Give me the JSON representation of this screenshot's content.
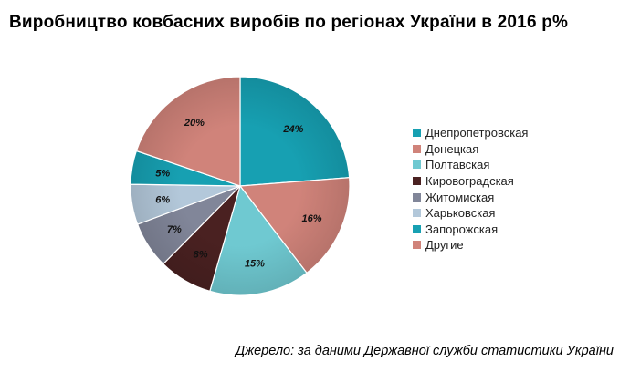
{
  "title": "Виробництво  ковбасних виробів  по регіонах  України в 2016 р%",
  "source": "Джерело: за даними Державної служби статистики України",
  "chart_data": {
    "type": "pie",
    "unit": "%",
    "slices": [
      {
        "label": "Днепропетровская",
        "value": 24,
        "data_label": "24%",
        "color": "#17a0b2"
      },
      {
        "label": "Донецкая",
        "value": 16,
        "data_label": "16%",
        "color": "#d0837a"
      },
      {
        "label": "Полтавская",
        "value": 15,
        "data_label": "15%",
        "color": "#6fc9d1"
      },
      {
        "label": "Кировоградская",
        "value": 8,
        "data_label": "8%",
        "color": "#4a2121"
      },
      {
        "label": "Житомиская",
        "value": 7,
        "data_label": "7%",
        "color": "#818699"
      },
      {
        "label": "Харьковская",
        "value": 6,
        "data_label": "6%",
        "color": "#b3c8da"
      },
      {
        "label": "Запорожская",
        "value": 5,
        "data_label": "5%",
        "color": "#17a0b2"
      },
      {
        "label": "Другие",
        "value": 20,
        "data_label": "20%",
        "color": "#d0837a"
      }
    ],
    "start_angle": "12 o'clock",
    "direction": "clockwise",
    "legend_position": "right"
  }
}
